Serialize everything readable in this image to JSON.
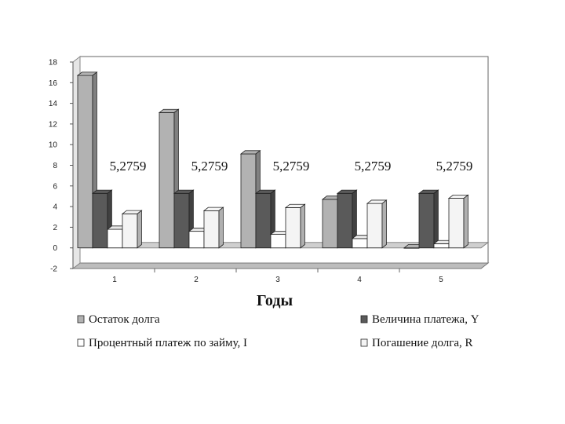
{
  "chart_data": {
    "type": "bar",
    "categories": [
      "1",
      "2",
      "3",
      "4",
      "5"
    ],
    "series": [
      {
        "name": "Остаток долга",
        "values": [
          16.7,
          13.1,
          9.1,
          4.7,
          0.0
        ],
        "color": "#b2b2b2"
      },
      {
        "name": "Величина платежа, Y",
        "values": [
          5.2759,
          5.2759,
          5.2759,
          5.2759,
          5.2759
        ],
        "color": "#5a5a5a"
      },
      {
        "name": "Процентный платеж по займу, I",
        "values": [
          1.8,
          1.6,
          1.3,
          0.9,
          0.4
        ],
        "color": "#ffffff"
      },
      {
        "name": "Погашение долга, R",
        "values": [
          3.3,
          3.6,
          3.9,
          4.3,
          4.8
        ],
        "color": "#f4f4f4"
      }
    ],
    "annotations": [
      "5,2759",
      "5,2759",
      "5,2759",
      "5,2759",
      "5,2759"
    ],
    "xlabel": "Годы",
    "ylabel": "",
    "ylim": [
      -2,
      18
    ],
    "yticks": [
      -2,
      0,
      2,
      4,
      6,
      8,
      10,
      12,
      14,
      16,
      18
    ],
    "grid": false,
    "legend_position": "bottom"
  }
}
